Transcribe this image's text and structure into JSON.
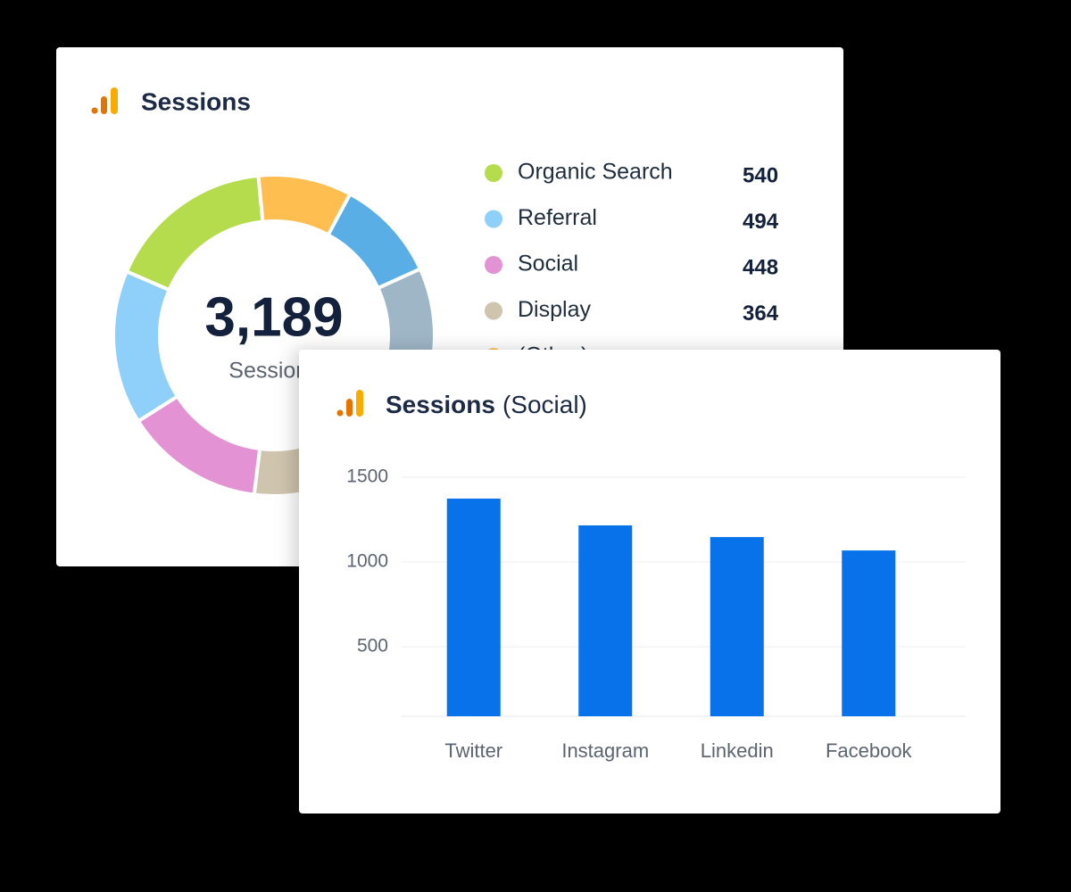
{
  "chart_data": [
    {
      "type": "pie",
      "title": "Sessions",
      "center_label": "3,189",
      "center_caption": "Sessions",
      "categories": [
        "Organic Search",
        "Referral",
        "Social",
        "Display",
        null,
        null,
        "(Other)"
      ],
      "values": [
        540,
        494,
        448,
        364,
        713,
        330,
        300
      ],
      "colors": [
        "#b5dc4d",
        "#8ed0fa",
        "#e393d3",
        "#cfc4ae",
        "#9fb6c6",
        "#5aaee6",
        "#ffbe4f"
      ]
    },
    {
      "type": "bar",
      "title": "Sessions",
      "subtitle": "(Social)",
      "categories": [
        "Twitter",
        "Instagram",
        "Linkedin",
        "Facebook"
      ],
      "values": [
        1374,
        1216,
        1147,
        1068
      ],
      "color": "#0872ea",
      "ylim": [
        90,
        1500
      ],
      "yticks": [
        500,
        1000,
        1500
      ],
      "grid": true
    }
  ]
}
